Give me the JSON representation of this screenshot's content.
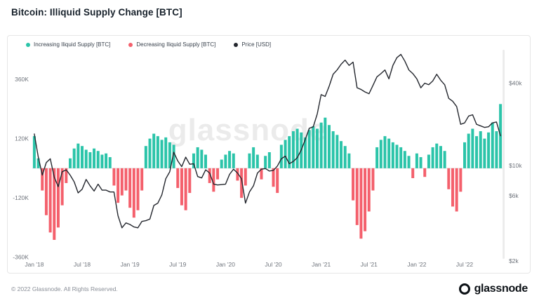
{
  "page": {
    "title": "Bitcoin: Illiquid Supply Change [BTC]",
    "footer_copyright": "© 2022 Glassnode. All Rights Reserved.",
    "brand": "glassnode",
    "watermark": "glassnode"
  },
  "colors": {
    "increasing": "#2bc4a9",
    "decreasing": "#f4606c",
    "price": "#23262d"
  },
  "chart_data": {
    "type": "bar",
    "title": "Bitcoin: Illiquid Supply Change [BTC]",
    "sampling": "2 points per month, Jan 2018 - Nov 2022",
    "legend_position": "top-left",
    "grid": false,
    "series": [
      {
        "name": "Increasing Iliquid Supply [BTC]",
        "kind": "bar-positive",
        "color_key": "increasing"
      },
      {
        "name": "Decreasing Iliquid Supply [BTC]",
        "kind": "bar-negative",
        "color_key": "decreasing"
      },
      {
        "name": "Price [USD]",
        "kind": "line",
        "axis": "right",
        "color_key": "price"
      }
    ],
    "x_tick_labels": [
      "Jan '18",
      "Jul '18",
      "Jan '19",
      "Jul '19",
      "Jan '20",
      "Jul '20",
      "Jan '21",
      "Jul '21",
      "Jan '22",
      "Jul '22"
    ],
    "x_tick_indices": [
      0,
      12,
      24,
      36,
      48,
      60,
      72,
      84,
      96,
      108
    ],
    "left_axis": {
      "ticks": [
        "360K",
        "120K",
        "-120K",
        "-360K"
      ],
      "tick_values": [
        360000,
        120000,
        -120000,
        -360000
      ],
      "scale": "linear",
      "range": [
        -370000,
        480000
      ]
    },
    "right_axis": {
      "ticks": [
        "$40k",
        "$10k",
        "$6k",
        "$2k"
      ],
      "tick_values": [
        40000,
        10000,
        6000,
        2000
      ],
      "scale": "log",
      "range": [
        2000,
        70000
      ]
    },
    "supply_change_btc": [
      130000,
      40000,
      -90000,
      -190000,
      -260000,
      -290000,
      -240000,
      -150000,
      -60000,
      40000,
      80000,
      100000,
      90000,
      75000,
      65000,
      80000,
      70000,
      55000,
      60000,
      45000,
      -70000,
      -140000,
      -110000,
      -90000,
      -160000,
      -200000,
      -170000,
      -90000,
      90000,
      120000,
      140000,
      130000,
      115000,
      125000,
      105000,
      95000,
      -80000,
      -150000,
      -170000,
      -100000,
      60000,
      85000,
      75000,
      55000,
      -60000,
      -95000,
      -45000,
      35000,
      55000,
      70000,
      60000,
      -50000,
      -120000,
      -70000,
      60000,
      85000,
      55000,
      -45000,
      50000,
      65000,
      -75000,
      -100000,
      95000,
      115000,
      130000,
      150000,
      160000,
      145000,
      125000,
      155000,
      170000,
      160000,
      185000,
      205000,
      175000,
      150000,
      135000,
      110000,
      90000,
      60000,
      -130000,
      -230000,
      -285000,
      -255000,
      -175000,
      -90000,
      85000,
      115000,
      130000,
      120000,
      105000,
      95000,
      85000,
      70000,
      50000,
      -40000,
      60000,
      45000,
      -35000,
      55000,
      85000,
      100000,
      90000,
      70000,
      -85000,
      -155000,
      -175000,
      -95000,
      105000,
      140000,
      160000,
      130000,
      150000,
      120000,
      145000,
      185000,
      150000,
      260000
    ],
    "price_usd": [
      17000,
      11500,
      8500,
      10500,
      11200,
      8200,
      7000,
      9000,
      9300,
      8500,
      7600,
      6300,
      6700,
      7900,
      7100,
      6500,
      7300,
      6600,
      6600,
      6400,
      6400,
      4300,
      3500,
      3800,
      3700,
      3550,
      3500,
      3900,
      3950,
      4050,
      5100,
      5300,
      6100,
      8000,
      9000,
      12500,
      10800,
      9800,
      11500,
      10200,
      10300,
      8300,
      8100,
      9300,
      8800,
      7300,
      7200,
      7250,
      7300,
      8600,
      9400,
      8800,
      8000,
      5300,
      6400,
      7100,
      8800,
      9400,
      9500,
      9100,
      9200,
      9900,
      11200,
      11700,
      10300,
      10700,
      11400,
      13000,
      15500,
      18700,
      19200,
      23800,
      33000,
      32000,
      38000,
      46500,
      50000,
      55000,
      59000,
      54000,
      57000,
      37000,
      36000,
      34500,
      33500,
      38500,
      44500,
      47000,
      50000,
      43000,
      54000,
      61500,
      65000,
      58000,
      50000,
      47000,
      43000,
      37000,
      40000,
      39000,
      41500,
      46500,
      42000,
      39000,
      31000,
      29500,
      27000,
      20000,
      20500,
      23000,
      23500,
      20000,
      19500,
      19000,
      19200,
      20500,
      20800,
      16500
    ]
  }
}
